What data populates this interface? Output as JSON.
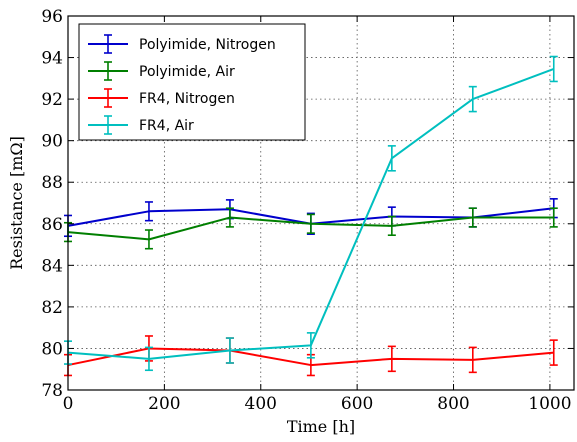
{
  "chart_data": {
    "type": "line",
    "xlabel": "Time [h]",
    "ylabel": "Resistance [mΩ]",
    "xlim": [
      0,
      1050
    ],
    "ylim": [
      78,
      96
    ],
    "xticks": [
      0,
      200,
      400,
      600,
      800,
      1000
    ],
    "yticks": [
      78,
      80,
      82,
      84,
      86,
      88,
      90,
      92,
      94,
      96
    ],
    "grid": true,
    "legend_position": "top-left",
    "x": [
      0,
      168,
      336,
      504,
      672,
      840,
      1008
    ],
    "series": [
      {
        "name": "Polyimide, Nitrogen",
        "color": "#0000cc",
        "values": [
          85.9,
          86.6,
          86.7,
          86.0,
          86.35,
          86.3,
          86.75
        ],
        "errors": [
          0.5,
          0.45,
          0.45,
          0.5,
          0.45,
          0.45,
          0.45
        ]
      },
      {
        "name": "Polyimide, Air",
        "color": "#007f00",
        "values": [
          85.6,
          85.25,
          86.3,
          86.0,
          85.9,
          86.3,
          86.3
        ],
        "errors": [
          0.45,
          0.45,
          0.45,
          0.45,
          0.45,
          0.45,
          0.45
        ]
      },
      {
        "name": "FR4, Nitrogen",
        "color": "#ff0000",
        "values": [
          79.2,
          80.0,
          79.9,
          79.2,
          79.5,
          79.45,
          79.8
        ],
        "errors": [
          0.5,
          0.6,
          0.6,
          0.5,
          0.6,
          0.6,
          0.6
        ]
      },
      {
        "name": "FR4, Air",
        "color": "#00bfbf",
        "values": [
          79.8,
          79.5,
          79.9,
          80.15,
          89.15,
          92.0,
          93.45
        ],
        "errors": [
          0.55,
          0.55,
          0.6,
          0.6,
          0.6,
          0.6,
          0.6
        ]
      }
    ]
  }
}
